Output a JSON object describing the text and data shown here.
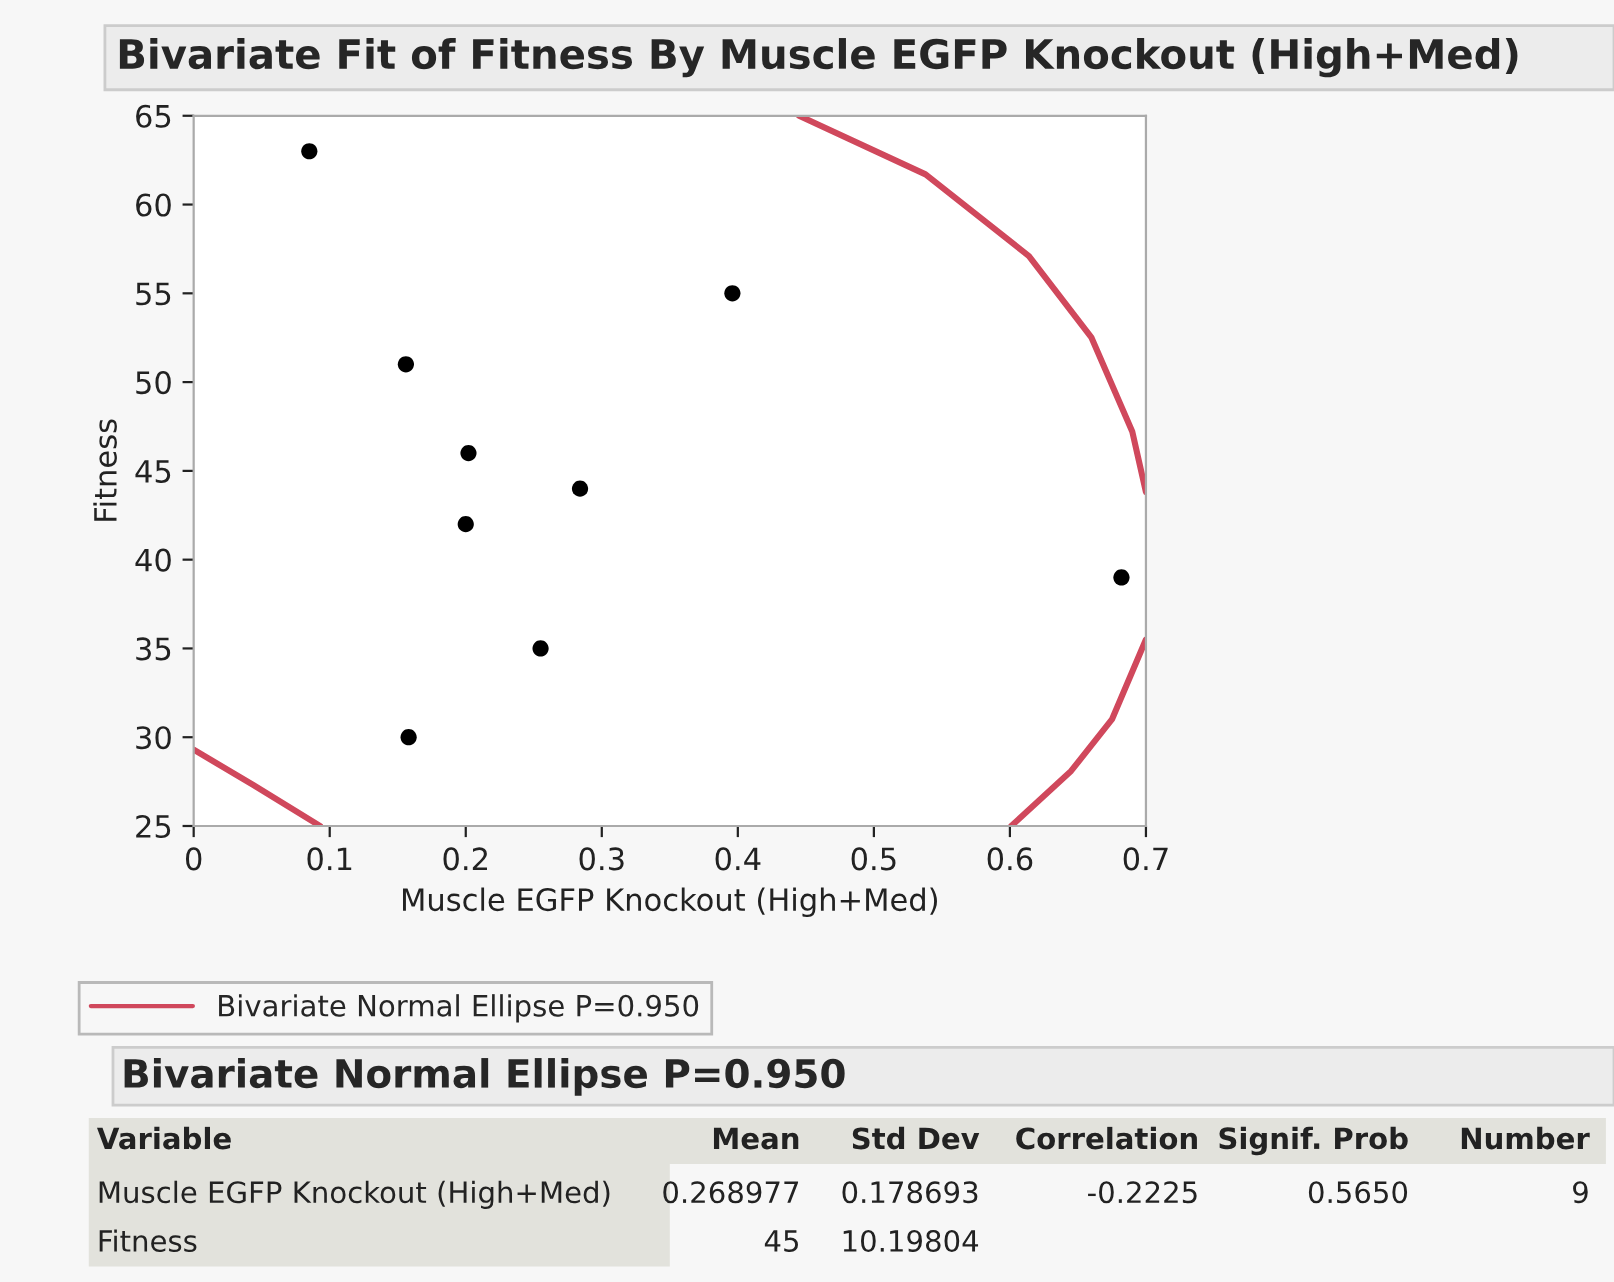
{
  "chart_data": {
    "type": "scatter",
    "title": "Bivariate Fit of Fitness By Muscle EGFP Knockout (High+Med)",
    "xlabel": "Muscle EGFP Knockout (High+Med)",
    "ylabel": "Fitness",
    "series": [
      {
        "color": "#000000",
        "marker": "circle",
        "x": [
          0.085,
          0.156,
          0.158,
          0.202,
          0.2,
          0.255,
          0.284,
          0.396,
          0.682
        ],
        "values": [
          63,
          51,
          30,
          46,
          42,
          35,
          44,
          55,
          39
        ]
      },
      {
        "type": "line",
        "name": "Bivariate Normal Ellipse P=0.950",
        "color": "#d0485c",
        "marker": "none",
        "x": [
          0.445,
          0.538,
          0.614,
          0.66,
          0.69,
          0.7
        ],
        "values": [
          65,
          61.7,
          57.1,
          52.5,
          47.2,
          43.8
        ]
      },
      {
        "type": "line",
        "color": "#d0485c",
        "marker": "none",
        "x": [
          0,
          0.044,
          0.093
        ],
        "values": [
          29.3,
          27.3,
          25
        ]
      },
      {
        "type": "line",
        "color": "#d0485c",
        "marker": "none",
        "x": [
          0.7,
          0.675,
          0.645,
          0.601
        ],
        "values": [
          35.5,
          31.0,
          28.1,
          25
        ]
      }
    ],
    "xlim": [
      0,
      0.7
    ],
    "xticks": [
      0,
      0.1,
      0.2,
      0.3,
      0.4,
      0.5,
      0.6,
      0.7
    ],
    "ylim": [
      25,
      65
    ],
    "yticks": [
      25,
      30,
      35,
      40,
      45,
      50,
      55,
      60,
      65
    ],
    "grid": false,
    "legend": "bottom",
    "annotations": [
      "Bivariate Normal Ellipse P=0.950",
      "Variable",
      "Mean",
      "Std Dev",
      "Correlation",
      "Signif. Prob",
      "Number",
      "Muscle EGFP Knockout (High+Med)",
      "0.268977",
      "0.178693",
      "-0.2225",
      "0.5650",
      "9",
      "Fitness",
      "45",
      "10.19804"
    ]
  }
}
